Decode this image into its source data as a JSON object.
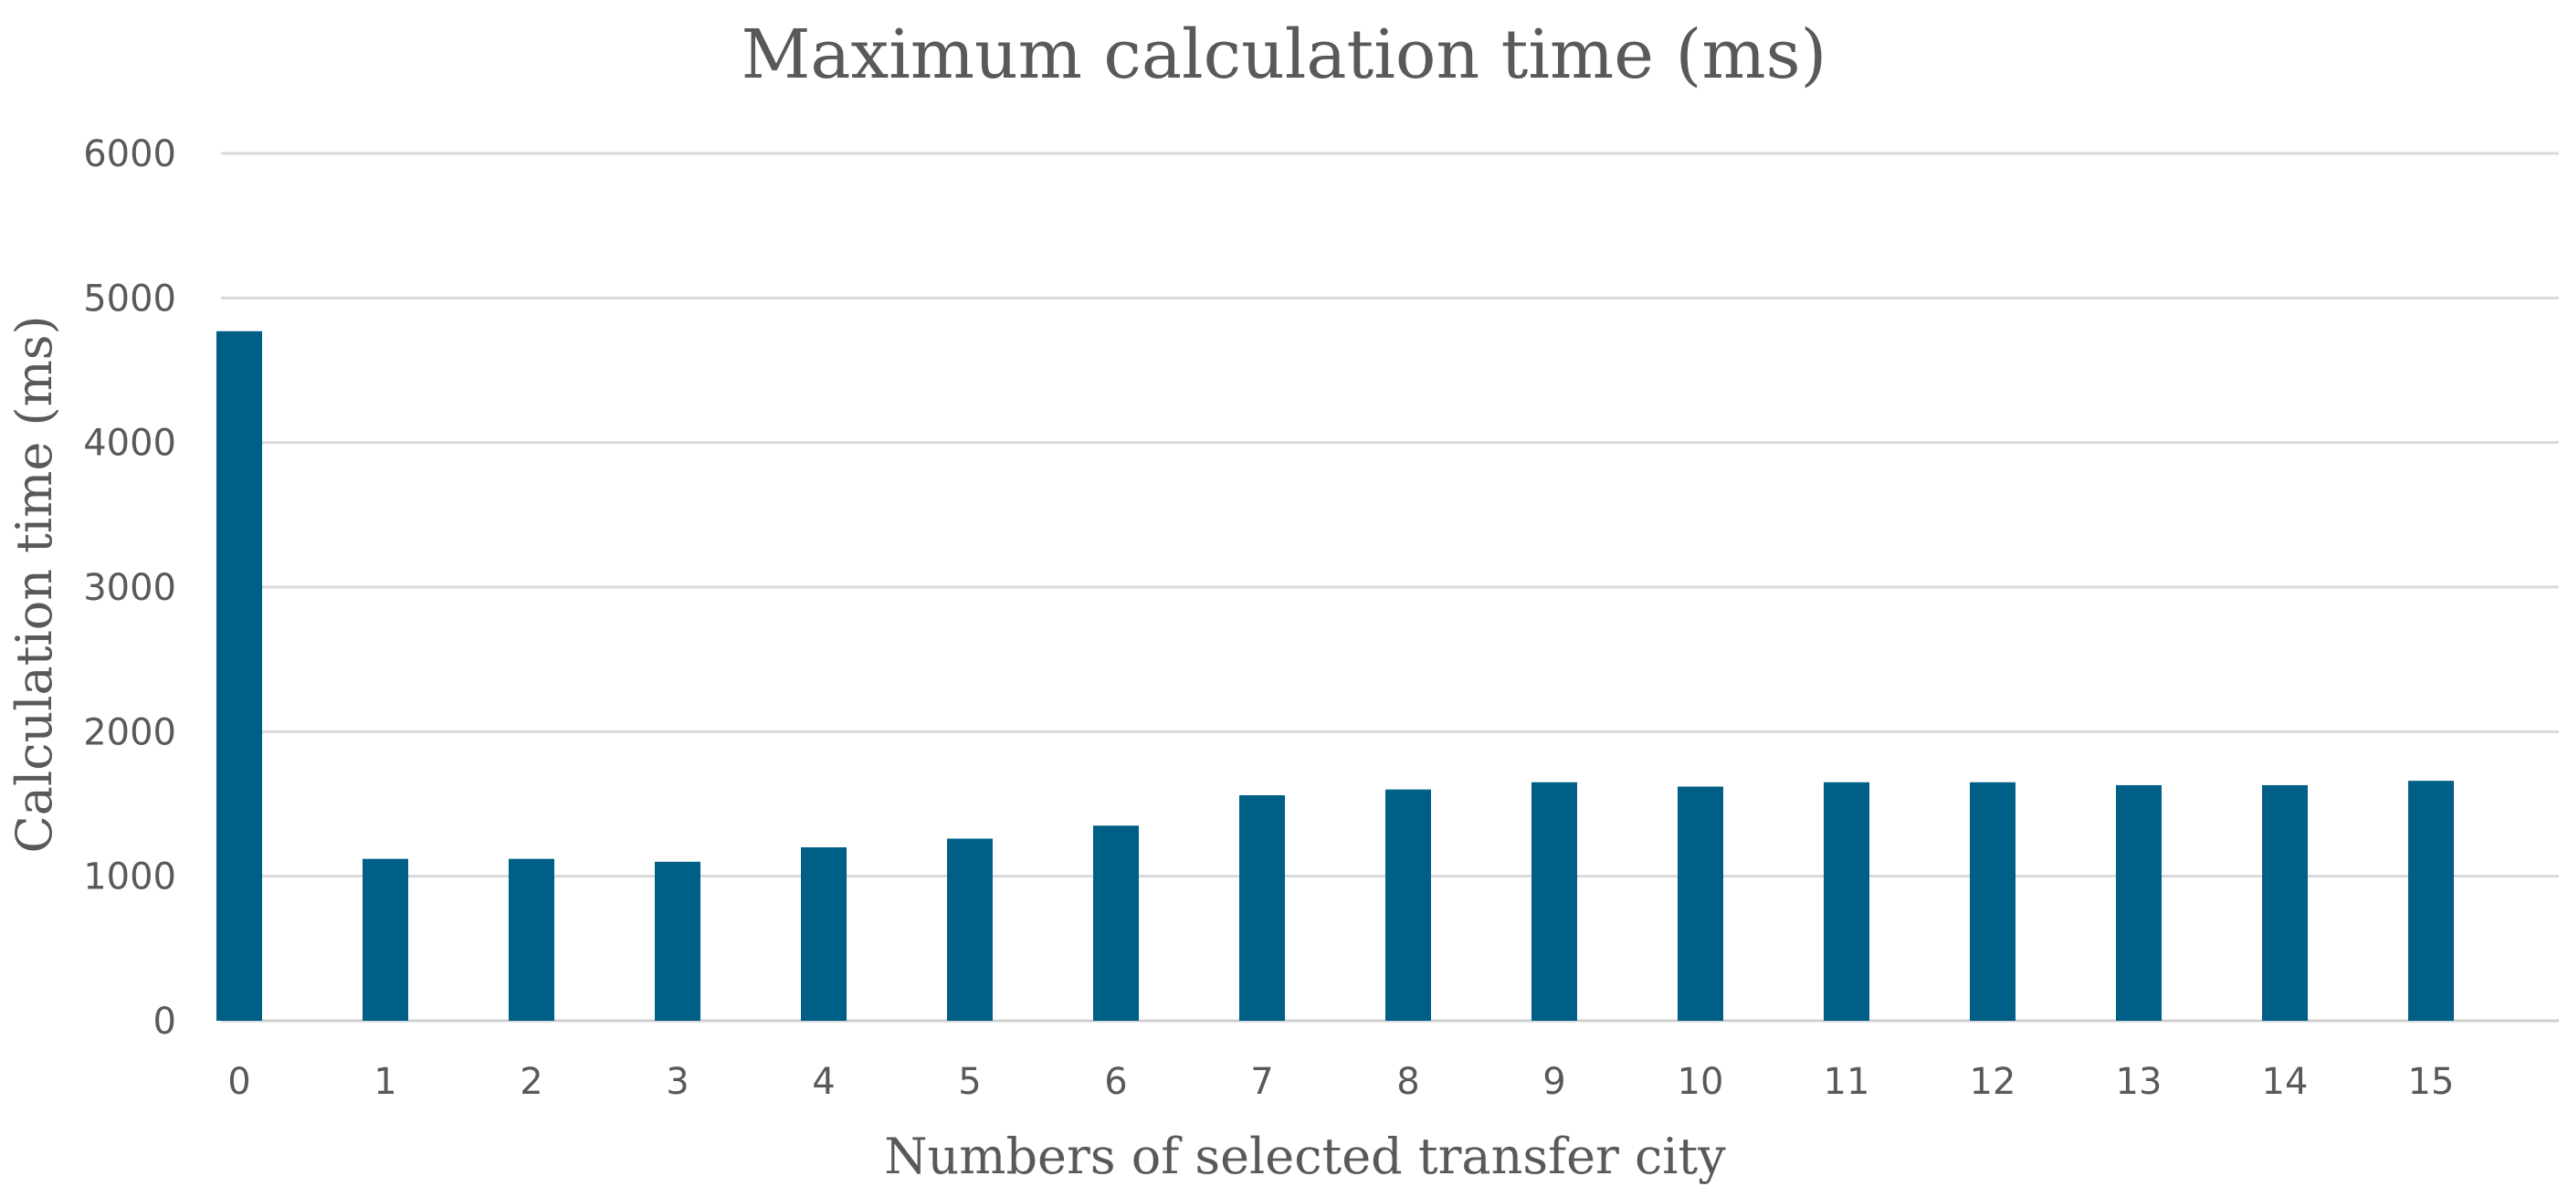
{
  "chart_data": {
    "type": "bar",
    "title": "Maximum calculation time (ms)",
    "xlabel": "Numbers of selected transfer city",
    "ylabel": "Calculation time (ms)",
    "categories": [
      "0",
      "1",
      "2",
      "3",
      "4",
      "5",
      "6",
      "7",
      "8",
      "9",
      "10",
      "11",
      "12",
      "13",
      "14",
      "15"
    ],
    "values": [
      4770,
      1120,
      1120,
      1100,
      1200,
      1260,
      1350,
      1560,
      1600,
      1650,
      1620,
      1650,
      1650,
      1630,
      1630,
      1660
    ],
    "ylim": [
      0,
      6000
    ],
    "yticks": [
      "0",
      "1000",
      "2000",
      "3000",
      "4000",
      "5000",
      "6000"
    ],
    "grid": true,
    "legend": "none",
    "bar_color": "#005f87"
  }
}
